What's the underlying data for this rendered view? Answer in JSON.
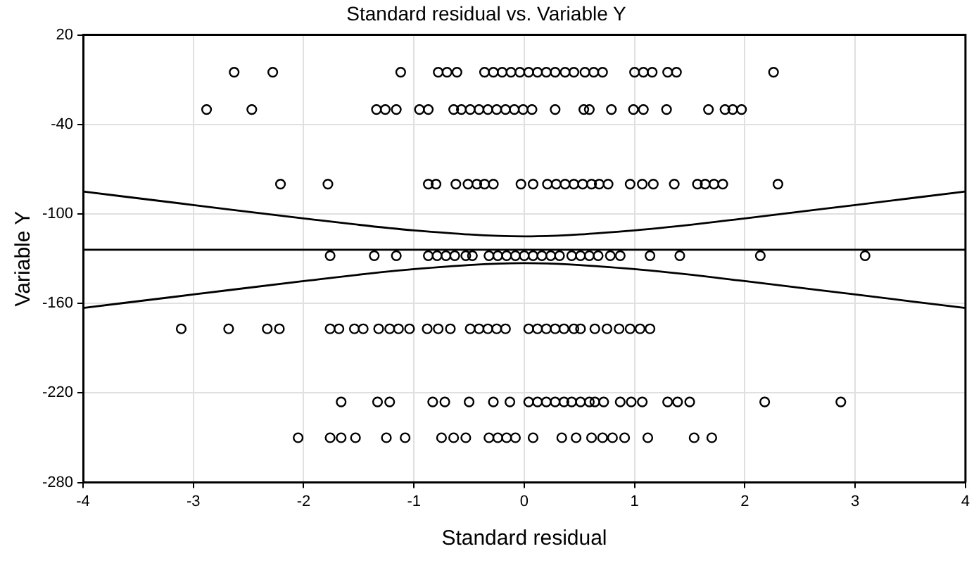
{
  "chart_data": {
    "type": "scatter",
    "title": "Standard residual vs. Variable Y",
    "xlabel": "Standard residual",
    "ylabel": "Variable Y",
    "xlim": [
      -4,
      4
    ],
    "xticks": [
      -4,
      -3,
      -2,
      -1,
      0,
      1,
      2,
      3,
      4
    ],
    "ylim": [
      -280,
      20
    ],
    "yticks": [
      -280,
      -220,
      -160,
      -100,
      -40,
      20
    ],
    "grid": true,
    "marker": "circle",
    "legend": false,
    "series": [
      {
        "type": "scatter",
        "color": "#000000",
        "x": [
          -2.63,
          -2.28,
          -1.12,
          -0.78,
          -0.7,
          -0.61,
          -0.36,
          -0.28,
          -0.2,
          -0.12,
          -0.04,
          0.04,
          0.12,
          0.2,
          0.28,
          0.37,
          0.45,
          0.55,
          0.63,
          0.71,
          1.0,
          1.08,
          1.16,
          1.3,
          1.38,
          2.26
        ],
        "values": [
          -5,
          -5,
          -5,
          -5,
          -5,
          -5,
          -5,
          -5,
          -5,
          -5,
          -5,
          -5,
          -5,
          -5,
          -5,
          -5,
          -5,
          -5,
          -5,
          -5,
          -5,
          -5,
          -5,
          -5,
          -5,
          -5
        ]
      },
      {
        "type": "scatter",
        "color": "#000000",
        "x": [
          -2.88,
          -2.47,
          -1.34,
          -1.26,
          -1.16,
          -0.95,
          -0.87,
          -0.64,
          -0.57,
          -0.49,
          -0.41,
          -0.33,
          -0.25,
          -0.17,
          -0.09,
          -0.01,
          0.07,
          0.28,
          0.54,
          0.59,
          0.79,
          0.99,
          1.08,
          1.29,
          1.67,
          1.82,
          1.89,
          1.97
        ],
        "values": [
          -30,
          -30,
          -30,
          -30,
          -30,
          -30,
          -30,
          -30,
          -30,
          -30,
          -30,
          -30,
          -30,
          -30,
          -30,
          -30,
          -30,
          -30,
          -30,
          -30,
          -30,
          -30,
          -30,
          -30,
          -30,
          -30,
          -30,
          -30
        ]
      },
      {
        "type": "scatter",
        "color": "#000000",
        "x": [
          -2.21,
          -1.78,
          -0.87,
          -0.8,
          -0.62,
          -0.51,
          -0.43,
          -0.36,
          -0.28,
          -0.03,
          0.08,
          0.21,
          0.29,
          0.37,
          0.45,
          0.53,
          0.61,
          0.68,
          0.76,
          0.96,
          1.07,
          1.17,
          1.36,
          1.57,
          1.64,
          1.72,
          1.8,
          2.3
        ],
        "values": [
          -80,
          -80,
          -80,
          -80,
          -80,
          -80,
          -80,
          -80,
          -80,
          -80,
          -80,
          -80,
          -80,
          -80,
          -80,
          -80,
          -80,
          -80,
          -80,
          -80,
          -80,
          -80,
          -80,
          -80,
          -80,
          -80,
          -80,
          -80
        ]
      },
      {
        "type": "scatter",
        "color": "#000000",
        "x": [
          -1.76,
          -1.36,
          -1.16,
          -0.87,
          -0.79,
          -0.71,
          -0.63,
          -0.53,
          -0.47,
          -0.32,
          -0.24,
          -0.16,
          -0.08,
          0.0,
          0.08,
          0.16,
          0.24,
          0.32,
          0.43,
          0.51,
          0.59,
          0.67,
          0.78,
          0.87,
          1.14,
          1.41,
          2.14,
          3.09
        ],
        "values": [
          -128,
          -128,
          -128,
          -128,
          -128,
          -128,
          -128,
          -128,
          -128,
          -128,
          -128,
          -128,
          -128,
          -128,
          -128,
          -128,
          -128,
          -128,
          -128,
          -128,
          -128,
          -128,
          -128,
          -128,
          -128,
          -128,
          -128,
          -128
        ]
      },
      {
        "type": "scatter",
        "color": "#000000",
        "x": [
          -3.11,
          -2.68,
          -2.33,
          -2.22,
          -1.76,
          -1.68,
          -1.54,
          -1.46,
          -1.32,
          -1.22,
          -1.14,
          -1.04,
          -0.88,
          -0.78,
          -0.67,
          -0.49,
          -0.41,
          -0.33,
          -0.25,
          -0.17,
          0.04,
          0.12,
          0.2,
          0.28,
          0.36,
          0.45,
          0.51,
          0.64,
          0.75,
          0.86,
          0.96,
          1.05,
          1.14
        ],
        "values": [
          -177,
          -177,
          -177,
          -177,
          -177,
          -177,
          -177,
          -177,
          -177,
          -177,
          -177,
          -177,
          -177,
          -177,
          -177,
          -177,
          -177,
          -177,
          -177,
          -177,
          -177,
          -177,
          -177,
          -177,
          -177,
          -177,
          -177,
          -177,
          -177,
          -177,
          -177,
          -177,
          -177
        ]
      },
      {
        "type": "scatter",
        "color": "#000000",
        "x": [
          -1.66,
          -1.33,
          -1.22,
          -0.83,
          -0.72,
          -0.5,
          -0.28,
          -0.13,
          0.04,
          0.12,
          0.2,
          0.28,
          0.36,
          0.43,
          0.51,
          0.59,
          0.64,
          0.72,
          0.87,
          0.97,
          1.07,
          1.3,
          1.39,
          1.5,
          2.18,
          2.87
        ],
        "values": [
          -226,
          -226,
          -226,
          -226,
          -226,
          -226,
          -226,
          -226,
          -226,
          -226,
          -226,
          -226,
          -226,
          -226,
          -226,
          -226,
          -226,
          -226,
          -226,
          -226,
          -226,
          -226,
          -226,
          -226,
          -226,
          -226
        ]
      },
      {
        "type": "scatter",
        "color": "#000000",
        "x": [
          -2.05,
          -1.76,
          -1.66,
          -1.53,
          -1.25,
          -1.08,
          -0.75,
          -0.64,
          -0.53,
          -0.32,
          -0.24,
          -0.16,
          -0.08,
          0.08,
          0.34,
          0.47,
          0.61,
          0.71,
          0.8,
          0.91,
          1.12,
          1.54,
          1.7
        ],
        "values": [
          -250,
          -250,
          -250,
          -250,
          -250,
          -250,
          -250,
          -250,
          -250,
          -250,
          -250,
          -250,
          -250,
          -250,
          -250,
          -250,
          -250,
          -250,
          -250,
          -250,
          -250,
          -250,
          -250
        ]
      },
      {
        "type": "line",
        "marker": "none",
        "color": "#000000",
        "x": [
          -4,
          4
        ],
        "values": [
          -124,
          -124
        ]
      },
      {
        "type": "line",
        "marker": "none",
        "color": "#000000",
        "x": [
          -4,
          -3,
          -2,
          -1,
          0,
          1,
          2,
          3,
          4
        ],
        "values": [
          -85,
          -94,
          -103,
          -111,
          -115,
          -111,
          -103,
          -94,
          -85
        ]
      },
      {
        "type": "line",
        "marker": "none",
        "color": "#000000",
        "x": [
          -4,
          -3,
          -2,
          -1,
          0,
          1,
          2,
          3,
          4
        ],
        "values": [
          -163,
          -154,
          -145,
          -137,
          -133,
          -137,
          -145,
          -154,
          -163
        ]
      }
    ]
  }
}
